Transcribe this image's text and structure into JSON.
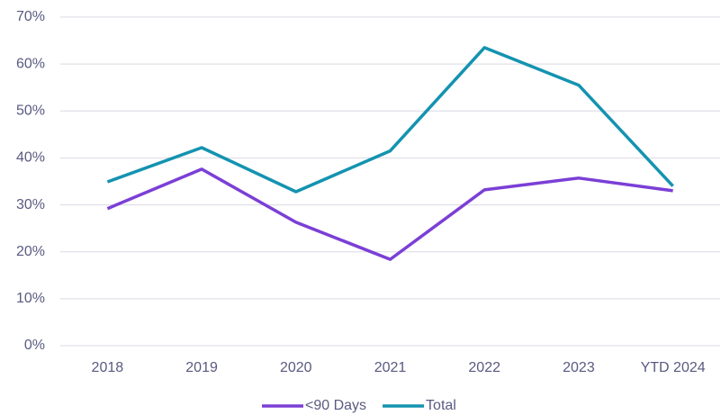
{
  "chart_data": {
    "type": "line",
    "categories": [
      "2018",
      "2019",
      "2020",
      "2021",
      "2022",
      "2023",
      "YTD 2024"
    ],
    "series": [
      {
        "name": "<90 Days",
        "color": "#7b3fd6",
        "values": [
          29.2,
          37.6,
          26.3,
          18.4,
          33.2,
          35.7,
          33.0
        ]
      },
      {
        "name": "Total",
        "color": "#1493b0",
        "values": [
          34.9,
          42.2,
          32.8,
          41.5,
          63.5,
          55.5,
          34.0
        ]
      }
    ],
    "ylim": [
      0,
      70
    ],
    "yticks": [
      {
        "value": 0,
        "label": "0%"
      },
      {
        "value": 10,
        "label": "10%"
      },
      {
        "value": 20,
        "label": "20%"
      },
      {
        "value": 30,
        "label": "30%"
      },
      {
        "value": 40,
        "label": "40%"
      },
      {
        "value": 50,
        "label": "50%"
      },
      {
        "value": 60,
        "label": "60%"
      },
      {
        "value": 70,
        "label": "70%"
      }
    ],
    "grid": true,
    "legend": "bottom"
  }
}
